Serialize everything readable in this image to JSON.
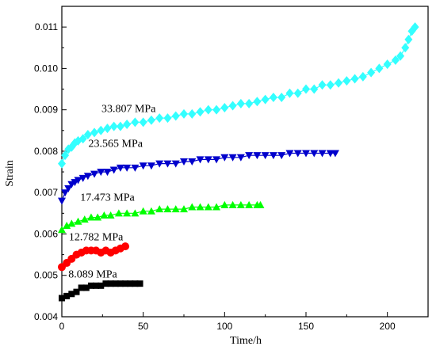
{
  "chart_data": {
    "type": "scatter",
    "xlabel": "Time/h",
    "ylabel": "Strain",
    "xlim": [
      0,
      225
    ],
    "ylim": [
      0.004,
      0.0115
    ],
    "xticks": [
      "0",
      "50",
      "100",
      "150",
      "200"
    ],
    "yticks": [
      "0.004",
      "0.005",
      "0.006",
      "0.007",
      "0.008",
      "0.009",
      "0.010",
      "0.011"
    ],
    "grid": false,
    "legend": "none",
    "series": [
      {
        "name": "33.807 MPa",
        "color": "#33ffff",
        "marker": "diamond",
        "points": [
          [
            0,
            0.0077
          ],
          [
            2,
            0.0079
          ],
          [
            4,
            0.00805
          ],
          [
            6,
            0.0081
          ],
          [
            8,
            0.0082
          ],
          [
            10,
            0.00825
          ],
          [
            13,
            0.0083
          ],
          [
            16,
            0.0084
          ],
          [
            20,
            0.00845
          ],
          [
            24,
            0.0085
          ],
          [
            28,
            0.00855
          ],
          [
            32,
            0.0086
          ],
          [
            36,
            0.0086
          ],
          [
            40,
            0.00865
          ],
          [
            45,
            0.0087
          ],
          [
            50,
            0.0087
          ],
          [
            55,
            0.00875
          ],
          [
            60,
            0.0088
          ],
          [
            65,
            0.0088
          ],
          [
            70,
            0.00885
          ],
          [
            75,
            0.0089
          ],
          [
            80,
            0.0089
          ],
          [
            85,
            0.00895
          ],
          [
            90,
            0.009
          ],
          [
            95,
            0.009
          ],
          [
            100,
            0.00905
          ],
          [
            105,
            0.0091
          ],
          [
            110,
            0.00915
          ],
          [
            115,
            0.00915
          ],
          [
            120,
            0.0092
          ],
          [
            125,
            0.00925
          ],
          [
            130,
            0.0093
          ],
          [
            135,
            0.0093
          ],
          [
            140,
            0.0094
          ],
          [
            145,
            0.0094
          ],
          [
            150,
            0.0095
          ],
          [
            155,
            0.0095
          ],
          [
            160,
            0.0096
          ],
          [
            165,
            0.0096
          ],
          [
            170,
            0.00965
          ],
          [
            175,
            0.0097
          ],
          [
            180,
            0.00975
          ],
          [
            185,
            0.0098
          ],
          [
            190,
            0.0099
          ],
          [
            195,
            0.01
          ],
          [
            200,
            0.0101
          ],
          [
            205,
            0.0102
          ],
          [
            208,
            0.0103
          ],
          [
            211,
            0.0105
          ],
          [
            213,
            0.0107
          ],
          [
            215,
            0.0109
          ],
          [
            217,
            0.011
          ]
        ]
      },
      {
        "name": "23.565 MPa",
        "color": "#0000cc",
        "marker": "triangle-down",
        "points": [
          [
            0,
            0.0068
          ],
          [
            2,
            0.007
          ],
          [
            4,
            0.0071
          ],
          [
            6,
            0.0072
          ],
          [
            8,
            0.00725
          ],
          [
            10,
            0.0073
          ],
          [
            13,
            0.00735
          ],
          [
            16,
            0.0074
          ],
          [
            20,
            0.00745
          ],
          [
            24,
            0.0075
          ],
          [
            28,
            0.0075
          ],
          [
            32,
            0.00755
          ],
          [
            36,
            0.0076
          ],
          [
            40,
            0.0076
          ],
          [
            45,
            0.0076
          ],
          [
            50,
            0.00765
          ],
          [
            55,
            0.00765
          ],
          [
            60,
            0.0077
          ],
          [
            65,
            0.0077
          ],
          [
            70,
            0.0077
          ],
          [
            75,
            0.00775
          ],
          [
            80,
            0.00775
          ],
          [
            85,
            0.0078
          ],
          [
            90,
            0.0078
          ],
          [
            95,
            0.0078
          ],
          [
            100,
            0.00785
          ],
          [
            105,
            0.00785
          ],
          [
            110,
            0.00785
          ],
          [
            115,
            0.0079
          ],
          [
            120,
            0.0079
          ],
          [
            125,
            0.0079
          ],
          [
            130,
            0.0079
          ],
          [
            135,
            0.0079
          ],
          [
            140,
            0.00795
          ],
          [
            145,
            0.00795
          ],
          [
            150,
            0.00795
          ],
          [
            155,
            0.00795
          ],
          [
            160,
            0.00795
          ],
          [
            165,
            0.00795
          ],
          [
            168,
            0.00795
          ]
        ]
      },
      {
        "name": "17.473 MPa",
        "color": "#00ff00",
        "marker": "triangle-up",
        "points": [
          [
            0,
            0.0061
          ],
          [
            3,
            0.0062
          ],
          [
            6,
            0.00625
          ],
          [
            10,
            0.0063
          ],
          [
            14,
            0.00635
          ],
          [
            18,
            0.0064
          ],
          [
            22,
            0.0064
          ],
          [
            26,
            0.00645
          ],
          [
            30,
            0.00645
          ],
          [
            35,
            0.0065
          ],
          [
            40,
            0.0065
          ],
          [
            45,
            0.0065
          ],
          [
            50,
            0.00655
          ],
          [
            55,
            0.00655
          ],
          [
            60,
            0.0066
          ],
          [
            65,
            0.0066
          ],
          [
            70,
            0.0066
          ],
          [
            75,
            0.0066
          ],
          [
            80,
            0.00665
          ],
          [
            85,
            0.00665
          ],
          [
            90,
            0.00665
          ],
          [
            95,
            0.00665
          ],
          [
            100,
            0.0067
          ],
          [
            105,
            0.0067
          ],
          [
            110,
            0.0067
          ],
          [
            115,
            0.0067
          ],
          [
            120,
            0.0067
          ],
          [
            122,
            0.0067
          ]
        ]
      },
      {
        "name": "12.782 MPa",
        "color": "#ff0000",
        "marker": "circle",
        "points": [
          [
            0,
            0.0052
          ],
          [
            3,
            0.0053
          ],
          [
            6,
            0.0054
          ],
          [
            9,
            0.0055
          ],
          [
            12,
            0.00555
          ],
          [
            15,
            0.0056
          ],
          [
            18,
            0.0056
          ],
          [
            21,
            0.0056
          ],
          [
            24,
            0.00555
          ],
          [
            27,
            0.0056
          ],
          [
            30,
            0.00555
          ],
          [
            33,
            0.0056
          ],
          [
            36,
            0.00565
          ],
          [
            39,
            0.0057
          ]
        ]
      },
      {
        "name": "8.089 MPa",
        "color": "#000000",
        "marker": "square",
        "points": [
          [
            0,
            0.00445
          ],
          [
            3,
            0.0045
          ],
          [
            6,
            0.00455
          ],
          [
            9,
            0.0046
          ],
          [
            12,
            0.0047
          ],
          [
            15,
            0.0047
          ],
          [
            18,
            0.00475
          ],
          [
            21,
            0.00475
          ],
          [
            24,
            0.00475
          ],
          [
            27,
            0.0048
          ],
          [
            30,
            0.0048
          ],
          [
            33,
            0.0048
          ],
          [
            36,
            0.0048
          ],
          [
            39,
            0.0048
          ],
          [
            42,
            0.0048
          ],
          [
            45,
            0.0048
          ],
          [
            48,
            0.0048
          ]
        ]
      }
    ]
  }
}
